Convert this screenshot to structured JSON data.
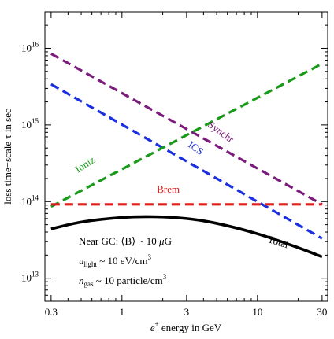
{
  "chart_data": {
    "type": "line",
    "xscale": "log",
    "yscale": "log",
    "xlim": [
      0.27,
      33
    ],
    "ylim": [
      5000000000000.0,
      3e+16
    ],
    "xlabel_main": "e",
    "xlabel_sup": "±",
    "xlabel_rest": " energy in GeV",
    "ylabel": "loss time−scale τ in sec",
    "x_ticks": [
      0.3,
      1,
      3,
      10,
      30
    ],
    "x_tick_labels": [
      "0.3",
      "1",
      "3",
      "10",
      "30"
    ],
    "y_ticks": [
      10000000000000.0,
      100000000000000.0,
      1000000000000000.0,
      1e+16
    ],
    "y_tick_labels": [
      {
        "base": "10",
        "exp": "13"
      },
      {
        "base": "10",
        "exp": "14"
      },
      {
        "base": "10",
        "exp": "15"
      },
      {
        "base": "10",
        "exp": "16"
      }
    ],
    "series": [
      {
        "name": "Synchr",
        "color": "#7b1b7b",
        "dash": true,
        "x": [
          0.3,
          30
        ],
        "y": [
          8500000000000000.0,
          92000000000000.0
        ],
        "label_at": [
          5.2,
          750000000000000.0
        ],
        "label_angle": 36
      },
      {
        "name": "ICS",
        "color": "#1a2fe0",
        "dash": true,
        "x": [
          0.3,
          30
        ],
        "y": [
          3400000000000000.0,
          33000000000000.0
        ],
        "label_at": [
          3.4,
          460000000000000.0
        ],
        "label_angle": 36
      },
      {
        "name": "Ioniz",
        "color": "#1a9a1a",
        "dash": true,
        "x": [
          0.3,
          30
        ],
        "y": [
          86000000000000.0,
          6300000000000000.0
        ],
        "label_at": [
          0.55,
          280000000000000.0
        ],
        "label_angle": -33
      },
      {
        "name": "Brem",
        "color": "#e01e1e",
        "dash": true,
        "x": [
          0.3,
          30
        ],
        "y": [
          92000000000000.0,
          92000000000000.0
        ],
        "label_at": [
          2.2,
          130000000000000.0
        ],
        "label_angle": 0
      },
      {
        "name": "Total",
        "color": "#000000",
        "dash": false,
        "x": [
          0.3,
          0.5,
          1,
          1.7,
          3,
          5,
          10,
          20,
          30
        ],
        "y": [
          44000000000000.0,
          54000000000000.0,
          62000000000000.0,
          63500000000000.0,
          60000000000000.0,
          52000000000000.0,
          38000000000000.0,
          25000000000000.0,
          19000000000000.0
        ],
        "label_at": [
          14,
          27000000000000.0
        ],
        "label_angle": 17
      }
    ],
    "annotations": {
      "line1": {
        "prefix": "Near GC:  ⟨B⟩ ~ 10 ",
        "mu": "μ",
        "suffix": "G"
      },
      "line2": {
        "var": "u",
        "sub": "light",
        "text": " ~ 10 eV/cm",
        "sup": "3"
      },
      "line3": {
        "var": "n",
        "sub": "gas",
        "text": " ~ 10 particle/cm",
        "sup": "3"
      }
    }
  }
}
